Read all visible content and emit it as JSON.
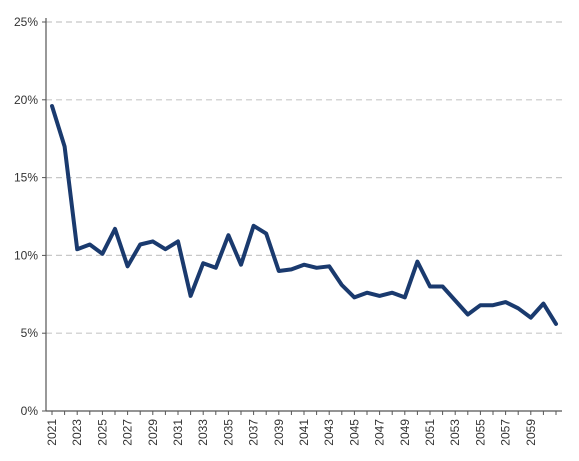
{
  "chart_data": {
    "type": "line",
    "title": "",
    "xlabel": "",
    "ylabel": "",
    "x": [
      2021,
      2022,
      2023,
      2024,
      2025,
      2026,
      2027,
      2028,
      2029,
      2030,
      2031,
      2032,
      2033,
      2034,
      2035,
      2036,
      2037,
      2038,
      2039,
      2040,
      2041,
      2042,
      2043,
      2044,
      2045,
      2046,
      2047,
      2048,
      2049,
      2050,
      2051,
      2052,
      2053,
      2054,
      2055,
      2056,
      2057,
      2058,
      2059,
      2060,
      2061
    ],
    "x_tick_labels": [
      "2021",
      "2023",
      "2025",
      "2027",
      "2029",
      "2031",
      "2033",
      "2035",
      "2037",
      "2039",
      "2041",
      "2043",
      "2045",
      "2047",
      "2049",
      "2051",
      "2053",
      "2055",
      "2057",
      "2059"
    ],
    "y_tick_labels": [
      "0%",
      "5%",
      "10%",
      "15%",
      "20%",
      "25%"
    ],
    "ylim": [
      0,
      25
    ],
    "grid": "horizontal dashed",
    "series": [
      {
        "color": "#1a3a6e",
        "values": [
          19.6,
          17.0,
          10.4,
          10.7,
          10.1,
          11.7,
          9.3,
          10.7,
          10.9,
          10.4,
          10.9,
          7.4,
          9.5,
          9.2,
          11.3,
          9.4,
          11.9,
          11.4,
          9.0,
          9.1,
          9.4,
          9.2,
          9.3,
          8.1,
          7.3,
          7.6,
          7.4,
          7.6,
          7.3,
          9.6,
          8.0,
          8.0,
          7.1,
          6.2,
          6.8,
          6.8,
          7.0,
          6.6,
          6.0,
          6.9,
          5.6
        ]
      }
    ]
  }
}
